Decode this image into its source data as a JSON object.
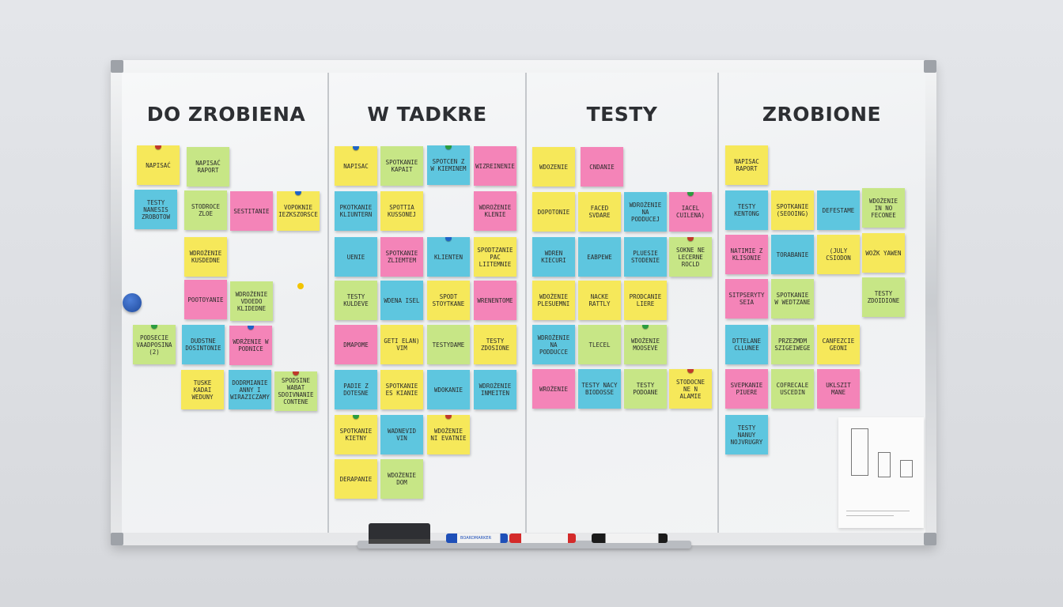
{
  "board": {
    "columns": [
      {
        "title": "DO ZROBIENA"
      },
      {
        "title": "W TADKRE"
      },
      {
        "title": "TESTY"
      },
      {
        "title": "ZROBIONE"
      }
    ]
  },
  "notes": [
    {
      "text": "Napisać",
      "color": "#f6e85a",
      "pin": "#c0392b"
    },
    {
      "text": "Napisać raport",
      "color": "#c7e686",
      "pin": ""
    },
    {
      "text": "Testy nanesis zrobotow",
      "color": "#5ec6df",
      "pin": ""
    },
    {
      "text": "Stodroce zloe",
      "color": "#c7e686",
      "pin": ""
    },
    {
      "text": "Sestitanie",
      "color": "#f484b8",
      "pin": ""
    },
    {
      "text": "Vopoknie iezkszorsce",
      "color": "#f6e85a",
      "pin": "#1e63c7"
    },
    {
      "text": "Wdrożenie kusdedne",
      "color": "#f6e85a",
      "pin": ""
    },
    {
      "text": "Pootoyanie",
      "color": "#f484b8",
      "pin": ""
    },
    {
      "text": "Wdrożenie vdoedo klidedne",
      "color": "#c7e686",
      "pin": ""
    },
    {
      "text": "Podsecie vaadposina (2)",
      "color": "#c7e686",
      "pin": "#2a9d3f"
    },
    {
      "text": "Dudstne dosintonie",
      "color": "#5ec6df",
      "pin": ""
    },
    {
      "text": "Wdrżenie w podnice",
      "color": "#f484b8",
      "pin": "#1e63c7"
    },
    {
      "text": "Tuske kadai weduny",
      "color": "#f6e85a",
      "pin": ""
    },
    {
      "text": "Dodrmianie anny i wiraziczamy",
      "color": "#5ec6df",
      "pin": ""
    },
    {
      "text": "Spodsine wabat sdoivnanie contene",
      "color": "#c7e686",
      "pin": "#c0392b"
    },
    {
      "text": "Napisac",
      "color": "#f6e85a",
      "pin": "#1e63c7"
    },
    {
      "text": "Spotkanie kapait",
      "color": "#c7e686",
      "pin": ""
    },
    {
      "text": "Spotcen z w kieminem",
      "color": "#5ec6df",
      "pin": "#2a9d3f"
    },
    {
      "text": "Wizreinenie",
      "color": "#f484b8",
      "pin": ""
    },
    {
      "text": "Pkotkanie kliuntern",
      "color": "#5ec6df",
      "pin": ""
    },
    {
      "text": "Spottia kussonej",
      "color": "#f6e85a",
      "pin": ""
    },
    {
      "text": "Wdrożenie klenie",
      "color": "#f484b8",
      "pin": ""
    },
    {
      "text": "Uenie",
      "color": "#5ec6df",
      "pin": ""
    },
    {
      "text": "Spotkanie zliemtem",
      "color": "#f484b8",
      "pin": ""
    },
    {
      "text": "Klienten",
      "color": "#5ec6df",
      "pin": "#1e63c7"
    },
    {
      "text": "Spodtzanie pac liitemnie",
      "color": "#f6e85a",
      "pin": ""
    },
    {
      "text": "Testy kuldeve",
      "color": "#c7e686",
      "pin": ""
    },
    {
      "text": "Wdena isel",
      "color": "#5ec6df",
      "pin": ""
    },
    {
      "text": "Spodt stoytkane",
      "color": "#f6e85a",
      "pin": ""
    },
    {
      "text": "Wrenentome",
      "color": "#f484b8",
      "pin": ""
    },
    {
      "text": "Dmapome",
      "color": "#f484b8",
      "pin": ""
    },
    {
      "text": "Geti elan) vim",
      "color": "#f6e85a",
      "pin": ""
    },
    {
      "text": "Testydame",
      "color": "#c7e686",
      "pin": ""
    },
    {
      "text": "Testy zdosione",
      "color": "#f6e85a",
      "pin": ""
    },
    {
      "text": "Padie z dotesne",
      "color": "#5ec6df",
      "pin": ""
    },
    {
      "text": "Spotkanie es kianie",
      "color": "#f6e85a",
      "pin": ""
    },
    {
      "text": "Wdokanie",
      "color": "#5ec6df",
      "pin": ""
    },
    {
      "text": "Wdrożenie inmeiten",
      "color": "#5ec6df",
      "pin": ""
    },
    {
      "text": "Spotkanie kietny",
      "color": "#f6e85a",
      "pin": "#2a9d3f"
    },
    {
      "text": "Wadnevid vin",
      "color": "#5ec6df",
      "pin": ""
    },
    {
      "text": "Wdożenie ni evatnie",
      "color": "#f6e85a",
      "pin": "#c0392b"
    },
    {
      "text": "Derapanie",
      "color": "#f6e85a",
      "pin": ""
    },
    {
      "text": "Wdożenie dom",
      "color": "#c7e686",
      "pin": ""
    },
    {
      "text": "Wdozenie",
      "color": "#f6e85a",
      "pin": ""
    },
    {
      "text": "Cndanie",
      "color": "#f484b8",
      "pin": ""
    },
    {
      "text": "Dopotonie",
      "color": "#f6e85a",
      "pin": ""
    },
    {
      "text": "Faced svdare",
      "color": "#f6e85a",
      "pin": ""
    },
    {
      "text": "Wdrożenie na podducej",
      "color": "#5ec6df",
      "pin": ""
    },
    {
      "text": "Iacel cuilena)",
      "color": "#f484b8",
      "pin": "#2a9d3f"
    },
    {
      "text": "Wdren kiecuri",
      "color": "#5ec6df",
      "pin": ""
    },
    {
      "text": "Eabpewe",
      "color": "#5ec6df",
      "pin": ""
    },
    {
      "text": "Pluesie stodenie",
      "color": "#5ec6df",
      "pin": ""
    },
    {
      "text": "Sokne ne lecerne rocld",
      "color": "#c7e686",
      "pin": "#c0392b"
    },
    {
      "text": "Wdożenie plesuemni",
      "color": "#f6e85a",
      "pin": ""
    },
    {
      "text": "Nacke rattly",
      "color": "#f6e85a",
      "pin": ""
    },
    {
      "text": "Prodcanie liere",
      "color": "#f6e85a",
      "pin": ""
    },
    {
      "text": "Wdrożenie na podducce",
      "color": "#5ec6df",
      "pin": ""
    },
    {
      "text": "Tlecel",
      "color": "#c7e686",
      "pin": ""
    },
    {
      "text": "Wdożenie mooseve",
      "color": "#c7e686",
      "pin": "#2a9d3f"
    },
    {
      "text": "Wrożenie",
      "color": "#f484b8",
      "pin": ""
    },
    {
      "text": "Testy nacy biodosse",
      "color": "#5ec6df",
      "pin": ""
    },
    {
      "text": "Testy podoane",
      "color": "#c7e686",
      "pin": ""
    },
    {
      "text": "Stodocne ne n alamie",
      "color": "#f6e85a",
      "pin": "#c0392b"
    },
    {
      "text": "Napisac raport",
      "color": "#f6e85a",
      "pin": ""
    },
    {
      "text": "Testy kentong",
      "color": "#5ec6df",
      "pin": ""
    },
    {
      "text": "Spotkanie (seooing)",
      "color": "#f6e85a",
      "pin": ""
    },
    {
      "text": "Defestame",
      "color": "#5ec6df",
      "pin": ""
    },
    {
      "text": "Wdożenie in no feconee",
      "color": "#c7e686",
      "pin": ""
    },
    {
      "text": "Natimie z klisonie",
      "color": "#f484b8",
      "pin": ""
    },
    {
      "text": "Torabanie",
      "color": "#5ec6df",
      "pin": ""
    },
    {
      "text": "(july csiodon",
      "color": "#f6e85a",
      "pin": ""
    },
    {
      "text": "Wożk yawen",
      "color": "#f6e85a",
      "pin": ""
    },
    {
      "text": "Sitpseryty seia",
      "color": "#f484b8",
      "pin": ""
    },
    {
      "text": "Spotkanie w wedtzane",
      "color": "#c7e686",
      "pin": ""
    },
    {
      "text": "Testy zdoidione",
      "color": "#c7e686",
      "pin": ""
    },
    {
      "text": "Dttelane cllunee",
      "color": "#5ec6df",
      "pin": ""
    },
    {
      "text": "Przezmdm szigeiwege",
      "color": "#c7e686",
      "pin": ""
    },
    {
      "text": "Canfezcie geoni",
      "color": "#f6e85a",
      "pin": ""
    },
    {
      "text": "Svepkanie piuere",
      "color": "#f484b8",
      "pin": ""
    },
    {
      "text": "Cofrecale uscedin",
      "color": "#c7e686",
      "pin": ""
    },
    {
      "text": "Uklszit mane",
      "color": "#f484b8",
      "pin": ""
    },
    {
      "text": "Testy nanuy nojvrugry",
      "color": "#5ec6df",
      "pin": ""
    }
  ],
  "tray": {
    "markers": [
      {
        "color": "#1e4fb8",
        "label": "BOARDMARKER"
      },
      {
        "color": "#d42a2a",
        "label": ""
      },
      {
        "color": "#1b1b1b",
        "label": ""
      }
    ]
  }
}
